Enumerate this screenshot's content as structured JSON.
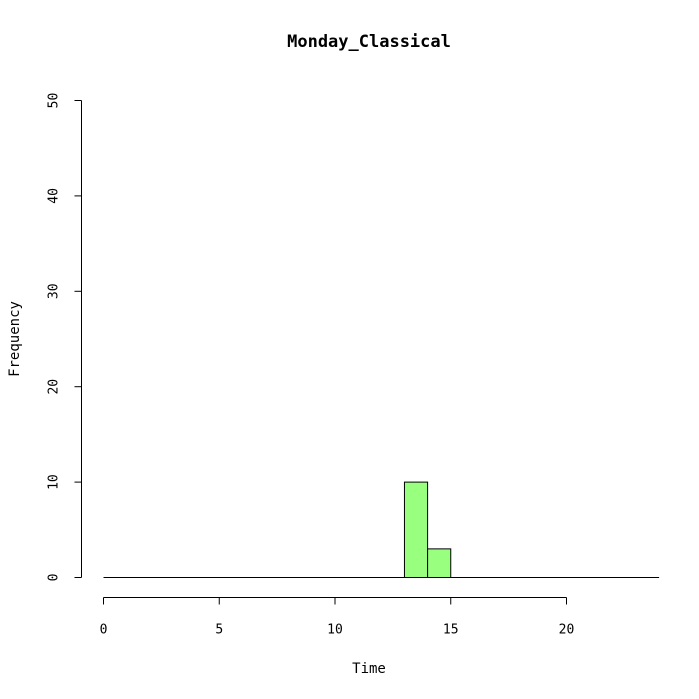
{
  "chart_data": {
    "type": "bar",
    "title": "Monday_Classical",
    "xlabel": "Time",
    "ylabel": "Frequency",
    "xlim": [
      0,
      24
    ],
    "ylim": [
      0,
      50
    ],
    "x_ticks": [
      0,
      5,
      10,
      15,
      20
    ],
    "y_ticks": [
      0,
      10,
      20,
      30,
      40,
      50
    ],
    "bins": [
      {
        "start": 13,
        "end": 14,
        "value": 10
      },
      {
        "start": 14,
        "end": 15,
        "value": 3
      }
    ],
    "bar_color": "#99FF7F",
    "grid": false
  }
}
